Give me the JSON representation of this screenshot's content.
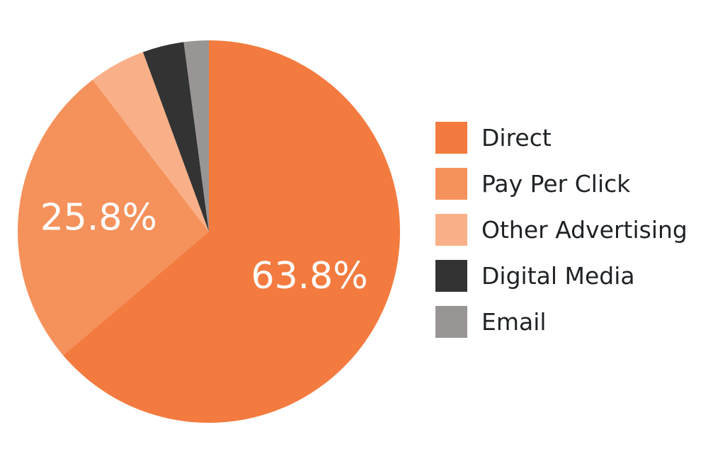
{
  "chart_data": {
    "type": "pie",
    "title": "",
    "start_angle_deg": 0,
    "direction": "clockwise",
    "legend_position": "right",
    "slices": [
      {
        "name": "Direct",
        "value": 63.8,
        "label": "63.8%",
        "color": "#f37b3f"
      },
      {
        "name": "Pay Per Click",
        "value": 25.8,
        "label": "25.8%",
        "color": "#f5915b"
      },
      {
        "name": "Other Advertising",
        "value": 4.8,
        "label": "",
        "color": "#f9b088"
      },
      {
        "name": "Digital Media",
        "value": 3.5,
        "label": "",
        "color": "#333333"
      },
      {
        "name": "Email",
        "value": 2.1,
        "label": "",
        "color": "#999595"
      }
    ]
  }
}
